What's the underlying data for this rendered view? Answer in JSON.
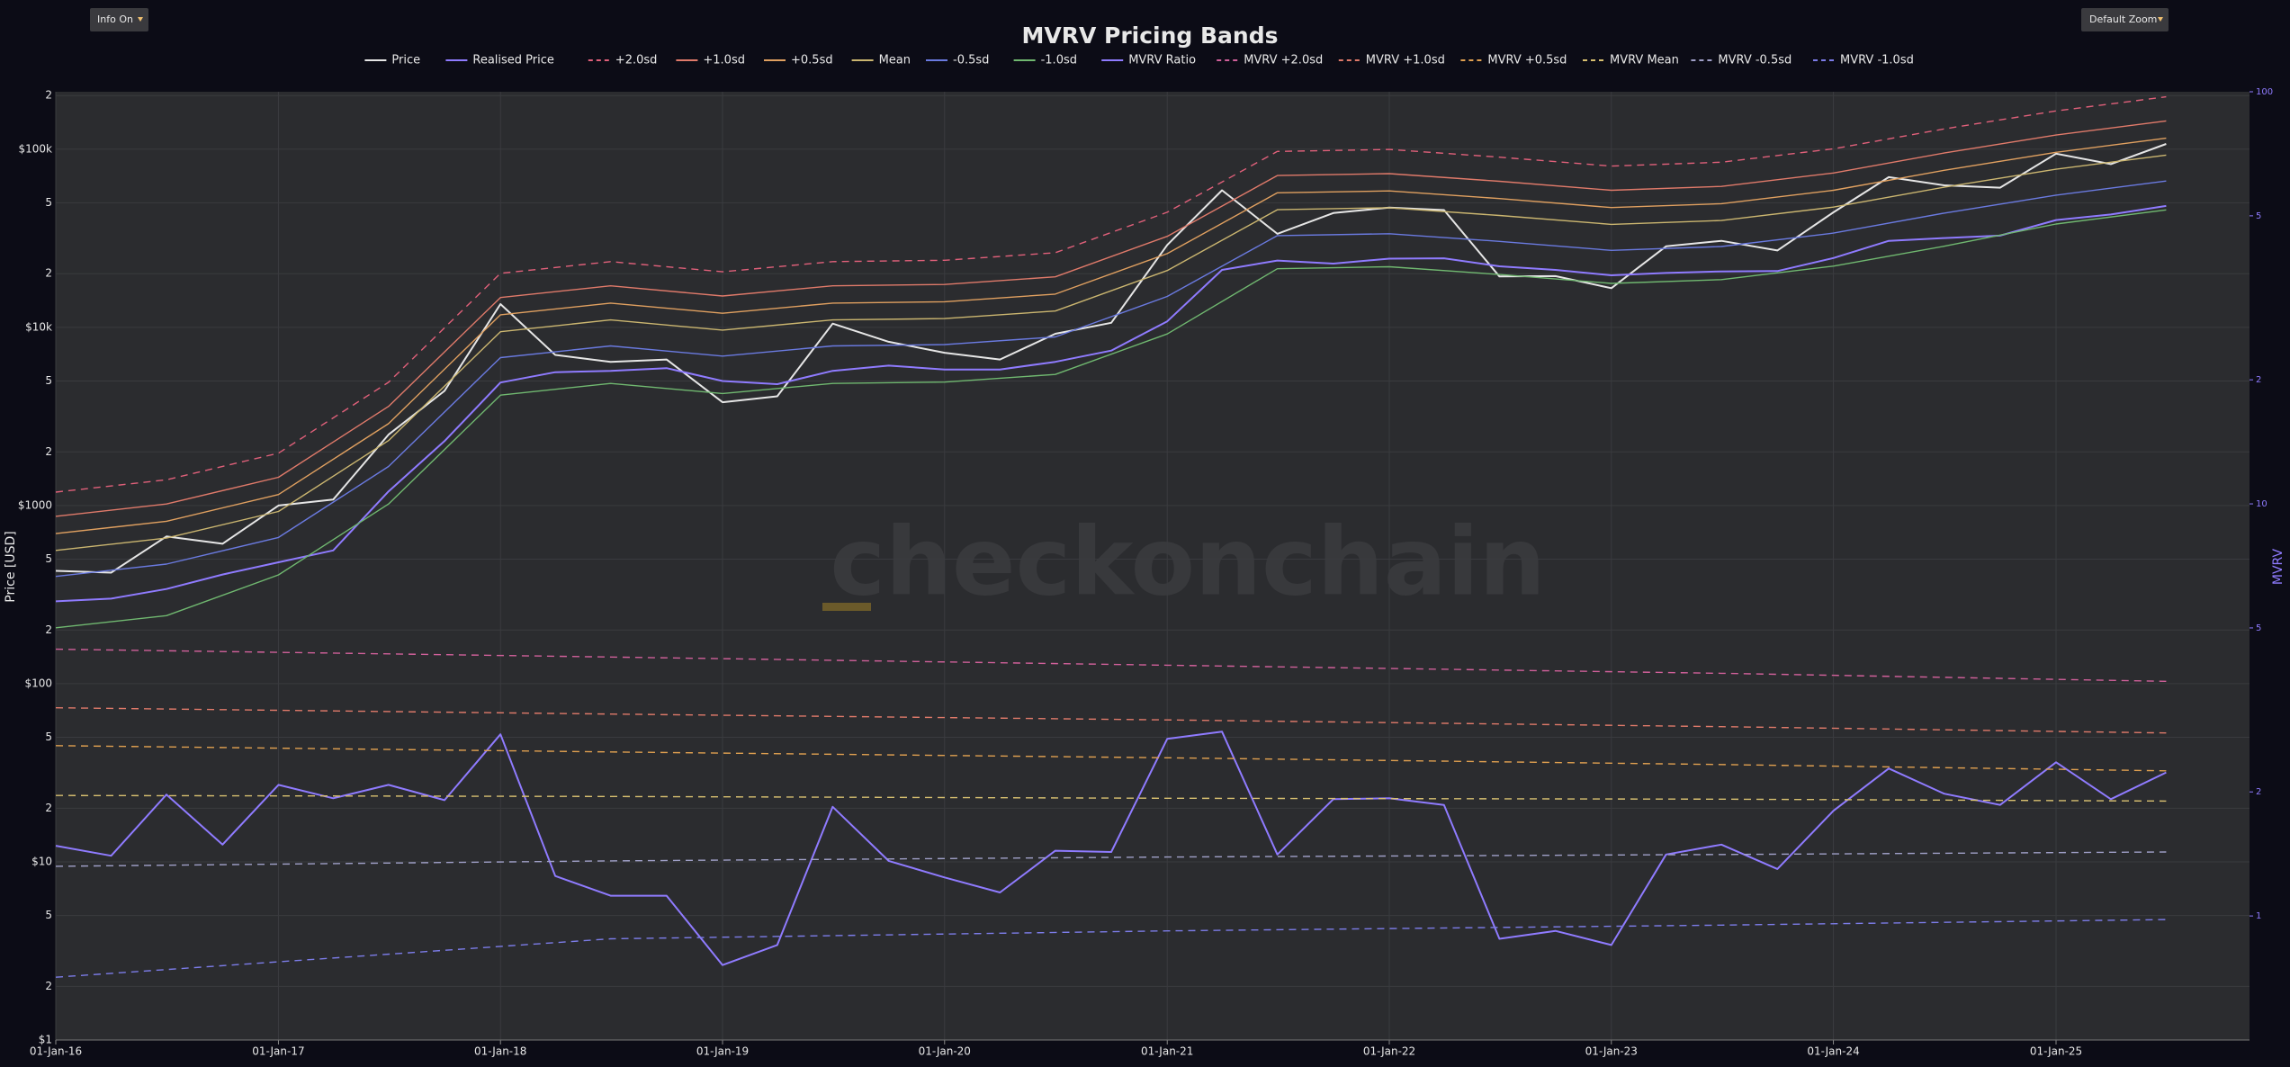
{
  "chart_data": {
    "type": "line",
    "title": "MVRV Pricing Bands",
    "watermark": "checkonchain",
    "controls": [
      "Info On",
      "Default Zoom"
    ],
    "y_label": "Price [USD]",
    "y2_label": "MVRV",
    "ylog": true,
    "y2log": true,
    "grid": true,
    "legend": "top",
    "xlim": [
      "2016-01-01",
      "2025-11-15"
    ],
    "xticks": [
      {
        "value": "2016-01-01",
        "label": "01-Jan-16"
      },
      {
        "value": "2017-01-01",
        "label": "01-Jan-17"
      },
      {
        "value": "2018-01-01",
        "label": "01-Jan-18"
      },
      {
        "value": "2019-01-01",
        "label": "01-Jan-19"
      },
      {
        "value": "2020-01-01",
        "label": "01-Jan-20"
      },
      {
        "value": "2021-01-01",
        "label": "01-Jan-21"
      },
      {
        "value": "2022-01-01",
        "label": "01-Jan-22"
      },
      {
        "value": "2023-01-01",
        "label": "01-Jan-23"
      },
      {
        "value": "2024-01-01",
        "label": "01-Jan-24"
      },
      {
        "value": "2025-01-01",
        "label": "01-Jan-25"
      }
    ],
    "ylim": [
      1,
      210000
    ],
    "yticks": [
      {
        "value": 1,
        "label": "$1"
      },
      2,
      5,
      {
        "value": 10,
        "label": "$10"
      },
      {
        "value": 20,
        "label": "2"
      },
      {
        "value": 50,
        "label": "5"
      },
      {
        "value": 100,
        "label": "$100"
      },
      {
        "value": 200,
        "label": "2"
      },
      {
        "value": 500,
        "label": "5"
      },
      {
        "value": 1000,
        "label": "$1000"
      },
      {
        "value": 2000,
        "label": "2"
      },
      {
        "value": 5000,
        "label": "5"
      },
      {
        "value": 10000,
        "label": "$10k"
      },
      {
        "value": 20000,
        "label": "2"
      },
      {
        "value": 50000,
        "label": "5"
      },
      {
        "value": 100000,
        "label": "$100k"
      },
      {
        "value": 200000,
        "label": "2"
      }
    ],
    "y2lim": [
      0.5,
      100
    ],
    "y2ticks": [
      1,
      2,
      5,
      10,
      {
        "value": 20,
        "label": "2"
      },
      {
        "value": 50,
        "label": "5"
      },
      100
    ],
    "x": [
      "2016-01-01",
      "2016-04-01",
      "2016-07-01",
      "2016-10-01",
      "2017-01-01",
      "2017-04-01",
      "2017-07-01",
      "2017-10-01",
      "2018-01-01",
      "2018-04-01",
      "2018-07-01",
      "2018-10-01",
      "2019-01-01",
      "2019-04-01",
      "2019-07-01",
      "2019-10-01",
      "2020-01-01",
      "2020-04-01",
      "2020-07-01",
      "2020-10-01",
      "2021-01-01",
      "2021-04-01",
      "2021-07-01",
      "2021-10-01",
      "2022-01-01",
      "2022-04-01",
      "2022-07-01",
      "2022-10-01",
      "2023-01-01",
      "2023-04-01",
      "2023-07-01",
      "2023-10-01",
      "2024-01-01",
      "2024-04-01",
      "2024-07-01",
      "2024-10-01",
      "2025-01-01",
      "2025-04-01",
      "2025-07-01"
    ],
    "series": [
      {
        "name": "Price",
        "color": "#e6e6e6",
        "values": [
          430,
          420,
          670,
          610,
          1000,
          1080,
          2500,
          4400,
          13500,
          7000,
          6400,
          6600,
          3800,
          4100,
          10500,
          8300,
          7200,
          6600,
          9200,
          10600,
          29000,
          58800,
          33500,
          43800,
          47000,
          45500,
          19300,
          19400,
          16600,
          28500,
          30600,
          27000,
          44200,
          69700,
          62700,
          60800,
          94400,
          82500,
          107000
        ]
      },
      {
        "name": "Realised Price",
        "color": "#8f7bff",
        "values": [
          290,
          300,
          340,
          410,
          480,
          560,
          1200,
          2300,
          4900,
          5600,
          5700,
          5900,
          5000,
          4800,
          5700,
          6100,
          5800,
          5800,
          6400,
          7400,
          10800,
          21000,
          23700,
          22800,
          24300,
          24400,
          22000,
          21000,
          19600,
          20200,
          20600,
          20700,
          24500,
          30600,
          31700,
          32700,
          40000,
          43000,
          48000
        ]
      },
      {
        "name": "+2.0sd",
        "color": "#e0607a",
        "dash": true,
        "x": [
          "2016-01-01",
          "2016-07-01",
          "2017-01-01",
          "2017-07-01",
          "2018-01-01",
          "2018-07-01",
          "2019-01-01",
          "2019-07-01",
          "2020-01-01",
          "2020-07-01",
          "2021-01-01",
          "2021-07-01",
          "2022-01-01",
          "2022-07-01",
          "2023-01-01",
          "2023-07-01",
          "2024-01-01",
          "2024-07-01",
          "2025-01-01",
          "2025-07-01"
        ],
        "values": [
          1189,
          1394,
          1968,
          4920,
          20090,
          23370,
          20500,
          23370,
          23780,
          26240,
          44280,
          97170,
          99630,
          90200,
          80360,
          84460,
          100450,
          129970,
          164000,
          196800
        ]
      },
      {
        "name": "+1.0sd",
        "color": "#e07a6a",
        "x": [
          "2016-01-01",
          "2016-07-01",
          "2017-01-01",
          "2017-07-01",
          "2018-01-01",
          "2018-07-01",
          "2019-01-01",
          "2019-07-01",
          "2020-01-01",
          "2020-07-01",
          "2021-01-01",
          "2021-07-01",
          "2022-01-01",
          "2022-07-01",
          "2023-01-01",
          "2023-07-01",
          "2024-01-01",
          "2024-07-01",
          "2025-01-01",
          "2025-07-01"
        ],
        "values": [
          870,
          1020,
          1440,
          3600,
          14700,
          17100,
          15000,
          17100,
          17400,
          19200,
          32400,
          71100,
          72900,
          66000,
          58800,
          61800,
          73500,
          95100,
          120000,
          144000
        ]
      },
      {
        "name": "+0.5sd",
        "color": "#e0a060",
        "x": [
          "2016-01-01",
          "2016-07-01",
          "2017-01-01",
          "2017-07-01",
          "2018-01-01",
          "2018-07-01",
          "2019-01-01",
          "2019-07-01",
          "2020-01-01",
          "2020-07-01",
          "2021-01-01",
          "2021-07-01",
          "2022-01-01",
          "2022-07-01",
          "2023-01-01",
          "2023-07-01",
          "2024-01-01",
          "2024-07-01",
          "2025-01-01",
          "2025-07-01"
        ],
        "values": [
          696,
          816,
          1152,
          2880,
          11760,
          13680,
          12000,
          13680,
          13920,
          15360,
          25920,
          56880,
          58320,
          52800,
          47040,
          49440,
          58800,
          76080,
          96000,
          115200
        ]
      },
      {
        "name": "Mean",
        "color": "#cbb670",
        "x": [
          "2016-01-01",
          "2016-07-01",
          "2017-01-01",
          "2017-07-01",
          "2018-01-01",
          "2018-07-01",
          "2019-01-01",
          "2019-07-01",
          "2020-01-01",
          "2020-07-01",
          "2021-01-01",
          "2021-07-01",
          "2022-01-01",
          "2022-07-01",
          "2023-01-01",
          "2023-07-01",
          "2024-01-01",
          "2024-07-01",
          "2025-01-01",
          "2025-07-01"
        ],
        "values": [
          560,
          656,
          926,
          2316,
          9457,
          11001,
          9650,
          11001,
          11194,
          12352,
          20844,
          45741,
          46899,
          42460,
          37828,
          39758,
          47285,
          61181,
          77200,
          92640
        ]
      },
      {
        "name": "-0.5sd",
        "color": "#6a7ae0",
        "x": [
          "2016-01-01",
          "2016-07-01",
          "2017-01-01",
          "2017-07-01",
          "2018-01-01",
          "2018-07-01",
          "2019-01-01",
          "2019-07-01",
          "2020-01-01",
          "2020-07-01",
          "2021-01-01",
          "2021-07-01",
          "2022-01-01",
          "2022-07-01",
          "2023-01-01",
          "2023-07-01",
          "2024-01-01",
          "2024-07-01",
          "2025-01-01",
          "2025-07-01"
        ],
        "values": [
          400,
          469,
          662,
          1656,
          6762,
          7866,
          6900,
          7866,
          8004,
          8832,
          14904,
          32706,
          33534,
          30360,
          27048,
          28428,
          33810,
          43746,
          55200,
          66240
        ]
      },
      {
        "name": "-1.0sd",
        "color": "#70b870",
        "x": [
          "2016-01-01",
          "2016-07-01",
          "2017-01-01",
          "2017-07-01",
          "2018-01-01",
          "2018-07-01",
          "2019-01-01",
          "2019-07-01",
          "2020-01-01",
          "2020-07-01",
          "2021-01-01",
          "2021-07-01",
          "2022-01-01",
          "2022-07-01",
          "2023-01-01",
          "2023-07-01",
          "2024-01-01",
          "2024-07-01",
          "2025-01-01",
          "2025-07-01"
        ],
        "values": [
          206,
          241,
          408,
          1020,
          4165,
          4845,
          4250,
          4845,
          4930,
          5440,
          9180,
          21330,
          21870,
          19800,
          17640,
          18540,
          22050,
          28530,
          38000,
          45600
        ]
      },
      {
        "name": "MVRV Ratio",
        "color": "#8f7bff",
        "axis": "y2",
        "values": [
          1.48,
          1.4,
          1.97,
          1.49,
          2.08,
          1.93,
          2.08,
          1.91,
          2.76,
          1.25,
          1.12,
          1.12,
          0.76,
          0.85,
          1.84,
          1.36,
          1.24,
          1.14,
          1.44,
          1.43,
          2.69,
          2.8,
          1.41,
          1.92,
          1.93,
          1.86,
          0.88,
          0.92,
          0.85,
          1.41,
          1.49,
          1.3,
          1.8,
          2.28,
          1.98,
          1.86,
          2.36,
          1.92,
          2.23
        ]
      },
      {
        "name": "MVRV +2.0sd",
        "color": "#d0609a",
        "axis": "y2",
        "dash": true,
        "x": [
          "2016-01-01",
          "2018-07-01",
          "2021-01-01",
          "2023-07-01",
          "2025-07-01"
        ],
        "values": [
          4.44,
          4.25,
          4.06,
          3.88,
          3.71
        ]
      },
      {
        "name": "MVRV +1.0sd",
        "color": "#e07a6a",
        "axis": "y2",
        "dash": true,
        "x": [
          "2016-01-01",
          "2018-07-01",
          "2021-01-01",
          "2023-07-01",
          "2025-07-01"
        ],
        "values": [
          3.2,
          3.09,
          2.99,
          2.88,
          2.78
        ]
      },
      {
        "name": "MVRV +0.5sd",
        "color": "#e0a050",
        "axis": "y2",
        "dash": true,
        "x": [
          "2016-01-01",
          "2018-07-01",
          "2021-01-01",
          "2023-07-01",
          "2025-07-01"
        ],
        "values": [
          2.59,
          2.5,
          2.42,
          2.33,
          2.25
        ]
      },
      {
        "name": "MVRV Mean",
        "color": "#d8c070",
        "axis": "y2",
        "dash": true,
        "x": [
          "2016-01-01",
          "2018-07-01",
          "2021-01-01",
          "2023-07-01",
          "2025-07-01"
        ],
        "values": [
          1.96,
          1.95,
          1.93,
          1.92,
          1.9
        ]
      },
      {
        "name": "MVRV -0.5sd",
        "color": "#a0a0c8",
        "axis": "y2",
        "dash": true,
        "x": [
          "2016-01-01",
          "2018-07-01",
          "2021-01-01",
          "2023-07-01",
          "2025-07-01"
        ],
        "values": [
          1.32,
          1.36,
          1.39,
          1.41,
          1.43
        ]
      },
      {
        "name": "MVRV -1.0sd",
        "color": "#7c7ce8",
        "axis": "y2",
        "dash": true,
        "x": [
          "2016-01-01",
          "2018-07-01",
          "2021-01-01",
          "2023-07-01",
          "2025-07-01"
        ],
        "values": [
          0.71,
          0.88,
          0.92,
          0.95,
          0.98
        ]
      }
    ]
  }
}
